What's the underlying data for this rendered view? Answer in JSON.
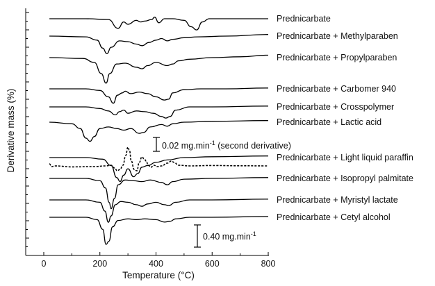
{
  "chart_data": {
    "type": "line",
    "xlabel": "Temperature (°C)",
    "ylabel": "Derivative mass (%)",
    "xlim": [
      -50,
      850
    ],
    "xticks": [
      0,
      200,
      400,
      600,
      800
    ],
    "grid": false,
    "legend": "labels at right end of each curve",
    "scale_bars": [
      {
        "label_main": "0.02 mg.min",
        "label_sup": "-1",
        "label_tail": " (second derivative)"
      },
      {
        "label_main": "0.40 mg.min",
        "label_sup": "-1",
        "label_tail": ""
      }
    ],
    "series": [
      {
        "name": "Prednicarbate",
        "style": "solid",
        "x": [
          20,
          150,
          230,
          265,
          285,
          300,
          330,
          345,
          360,
          385,
          395,
          410,
          430,
          460,
          500,
          525,
          545,
          565,
          590,
          650,
          800
        ],
        "y": [
          0,
          0,
          -0.01,
          -0.12,
          -0.04,
          -0.07,
          -0.02,
          -0.04,
          -0.03,
          -0.01,
          0.02,
          -0.05,
          0,
          0,
          -0.02,
          -0.1,
          -0.14,
          -0.04,
          0,
          0,
          0
        ]
      },
      {
        "name": "Prednicarbate + Methylparaben",
        "style": "solid",
        "x": [
          20,
          150,
          190,
          210,
          225,
          240,
          270,
          300,
          330,
          350,
          375,
          400,
          420,
          440,
          460,
          500,
          550,
          650,
          800
        ],
        "y": [
          0,
          -0.01,
          -0.05,
          -0.15,
          -0.22,
          -0.14,
          -0.06,
          -0.07,
          -0.1,
          -0.12,
          -0.08,
          -0.05,
          -0.03,
          -0.06,
          -0.04,
          -0.02,
          -0.01,
          0,
          0.02
        ]
      },
      {
        "name": "Prednicarbate + Propylparaben",
        "style": "solid",
        "x": [
          20,
          140,
          180,
          205,
          222,
          235,
          260,
          290,
          330,
          350,
          370,
          400,
          440,
          460,
          480,
          520,
          600,
          700,
          800
        ],
        "y": [
          0,
          -0.01,
          -0.06,
          -0.2,
          -0.32,
          -0.2,
          -0.08,
          -0.07,
          -0.12,
          -0.14,
          -0.1,
          -0.06,
          -0.1,
          -0.08,
          -0.04,
          -0.02,
          0,
          0.01,
          0.03
        ]
      },
      {
        "name": "Prednicarbate + Carbomer 940",
        "style": "solid",
        "x": [
          20,
          150,
          200,
          230,
          248,
          262,
          280,
          290,
          310,
          340,
          370,
          400,
          430,
          445,
          460,
          500,
          560,
          650,
          800
        ],
        "y": [
          0,
          0,
          -0.02,
          -0.1,
          -0.18,
          -0.08,
          -0.05,
          -0.03,
          -0.06,
          -0.04,
          -0.06,
          -0.1,
          -0.14,
          -0.13,
          -0.05,
          -0.01,
          0,
          0,
          0.01
        ]
      },
      {
        "name": "Prednicarbate + Crosspolymer",
        "style": "solid",
        "x": [
          20,
          150,
          200,
          230,
          255,
          270,
          285,
          300,
          330,
          360,
          390,
          420,
          435,
          450,
          470,
          520,
          600,
          800
        ],
        "y": [
          0,
          0,
          -0.02,
          -0.05,
          -0.1,
          -0.06,
          -0.04,
          -0.08,
          -0.05,
          -0.06,
          -0.08,
          -0.12,
          -0.14,
          -0.12,
          -0.04,
          0,
          0,
          0.01
        ]
      },
      {
        "name": "Prednicarbate + Lactic acid",
        "style": "solid",
        "x": [
          20,
          100,
          130,
          150,
          165,
          180,
          200,
          230,
          260,
          285,
          310,
          340,
          355,
          380,
          420,
          440,
          460,
          500,
          600,
          800
        ],
        "y": [
          0,
          -0.02,
          -0.08,
          -0.2,
          -0.24,
          -0.18,
          -0.08,
          -0.06,
          -0.08,
          -0.1,
          -0.08,
          -0.14,
          -0.13,
          -0.06,
          -0.03,
          -0.05,
          -0.02,
          0,
          0.01,
          0.02
        ]
      },
      {
        "name": "Prednicarbate + Light liquid paraffin",
        "style": "solid",
        "x": [
          20,
          150,
          210,
          240,
          260,
          272,
          285,
          300,
          320,
          335,
          350,
          370,
          400,
          440,
          500,
          600,
          800
        ],
        "y": [
          0,
          0,
          -0.02,
          -0.1,
          -0.25,
          -0.3,
          -0.22,
          -0.14,
          -0.24,
          -0.2,
          -0.12,
          -0.1,
          -0.06,
          -0.03,
          0,
          0.01,
          0.02
        ]
      },
      {
        "name": "second derivative",
        "style": "dotted",
        "x": [
          20,
          28,
          40,
          100,
          180,
          220,
          240,
          252,
          262,
          272,
          282,
          292,
          300,
          305,
          312,
          322,
          332,
          340,
          350,
          358,
          365,
          372,
          382,
          392,
          405,
          420,
          440,
          455,
          465,
          480,
          520,
          600,
          700,
          800
        ],
        "y": [
          0,
          -0.2,
          -0.15,
          -0.22,
          -0.2,
          -0.15,
          -0.1,
          -0.3,
          -0.5,
          -0.4,
          -0.1,
          0.6,
          1.2,
          1.0,
          0.2,
          -0.4,
          -0.5,
          0.1,
          0.5,
          0.35,
          0.2,
          -0.1,
          -0.25,
          -0.1,
          -0.2,
          -0.15,
          0.05,
          0.2,
          0.1,
          -0.1,
          -0.15,
          -0.12,
          -0.14,
          -0.15
        ]
      },
      {
        "name": "Prednicarbate + Isopropyl palmitate",
        "style": "solid",
        "x": [
          20,
          150,
          200,
          220,
          233,
          240,
          252,
          265,
          290,
          320,
          350,
          380,
          420,
          440,
          460,
          500,
          600,
          800
        ],
        "y": [
          0,
          0,
          -0.03,
          -0.12,
          -0.3,
          -0.38,
          -0.25,
          -0.08,
          -0.02,
          -0.03,
          -0.04,
          -0.02,
          -0.05,
          -0.08,
          -0.04,
          -0.01,
          0,
          0.01
        ]
      },
      {
        "name": "Prednicarbate + Myristyl lactate",
        "style": "solid",
        "x": [
          20,
          150,
          200,
          218,
          230,
          240,
          255,
          275,
          300,
          330,
          350,
          370,
          400,
          430,
          445,
          470,
          520,
          600,
          800
        ],
        "y": [
          0,
          0,
          -0.03,
          -0.14,
          -0.28,
          -0.2,
          -0.06,
          -0.02,
          -0.03,
          -0.06,
          -0.08,
          -0.05,
          -0.03,
          -0.06,
          -0.07,
          -0.03,
          0,
          0,
          0.01
        ]
      },
      {
        "name": "Prednicarbate + Cetyl alcohol",
        "style": "solid",
        "x": [
          20,
          150,
          190,
          210,
          222,
          232,
          245,
          265,
          300,
          330,
          360,
          400,
          430,
          450,
          470,
          520,
          600,
          800
        ],
        "y": [
          0,
          0,
          -0.03,
          -0.15,
          -0.34,
          -0.3,
          -0.12,
          -0.04,
          -0.02,
          -0.03,
          -0.02,
          -0.03,
          -0.06,
          -0.05,
          -0.02,
          0,
          0,
          0.01
        ]
      }
    ]
  }
}
